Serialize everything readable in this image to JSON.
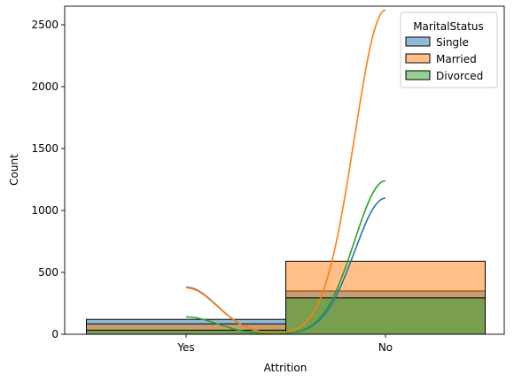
{
  "chart_data": {
    "type": "bar",
    "xlabel": "Attrition",
    "ylabel": "Count",
    "categories": [
      "Yes",
      "No"
    ],
    "ylim": [
      0,
      2650
    ],
    "yticks": [
      0,
      500,
      1000,
      1500,
      2000,
      2500
    ],
    "ytick_labels": [
      "0",
      "500",
      "1000",
      "1500",
      "2000",
      "2500"
    ],
    "grid": false,
    "legend": {
      "title": "MaritalStatus",
      "position": "top-right",
      "entries": [
        "Single",
        "Married",
        "Divorced"
      ]
    },
    "series": [
      {
        "name": "Single",
        "color": "#1f77b4",
        "values": [
          120,
          350
        ],
        "kde_peaks": [
          380,
          1100
        ]
      },
      {
        "name": "Married",
        "color": "#ff7f0e",
        "values": [
          84,
          590
        ],
        "kde_peaks": [
          375,
          2620
        ]
      },
      {
        "name": "Divorced",
        "color": "#2ca02c",
        "values": [
          33,
          294
        ],
        "kde_peaks": [
          140,
          1240
        ]
      }
    ]
  }
}
